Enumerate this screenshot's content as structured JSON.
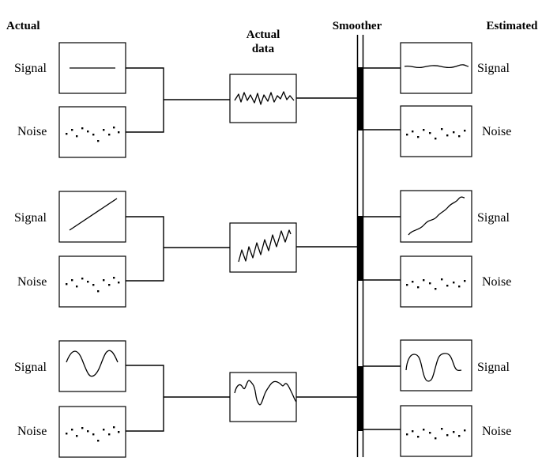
{
  "headers": {
    "actual": "Actual",
    "actual_data_line1": "Actual",
    "actual_data_line2": "data",
    "smoother": "Smoother",
    "estimated": "Estimated"
  },
  "rows": [
    {
      "signal_label": "Signal",
      "noise_label": "Noise",
      "est_signal_label": "Signal",
      "est_noise_label": "Noise",
      "signal_shape": "constant"
    },
    {
      "signal_label": "Signal",
      "noise_label": "Noise",
      "est_signal_label": "Signal",
      "est_noise_label": "Noise",
      "signal_shape": "linear-trend"
    },
    {
      "signal_label": "Signal",
      "noise_label": "Noise",
      "est_signal_label": "Signal",
      "est_noise_label": "Noise",
      "signal_shape": "sinusoid"
    }
  ],
  "colors": {
    "ink": "#000000",
    "background": "#ffffff"
  }
}
